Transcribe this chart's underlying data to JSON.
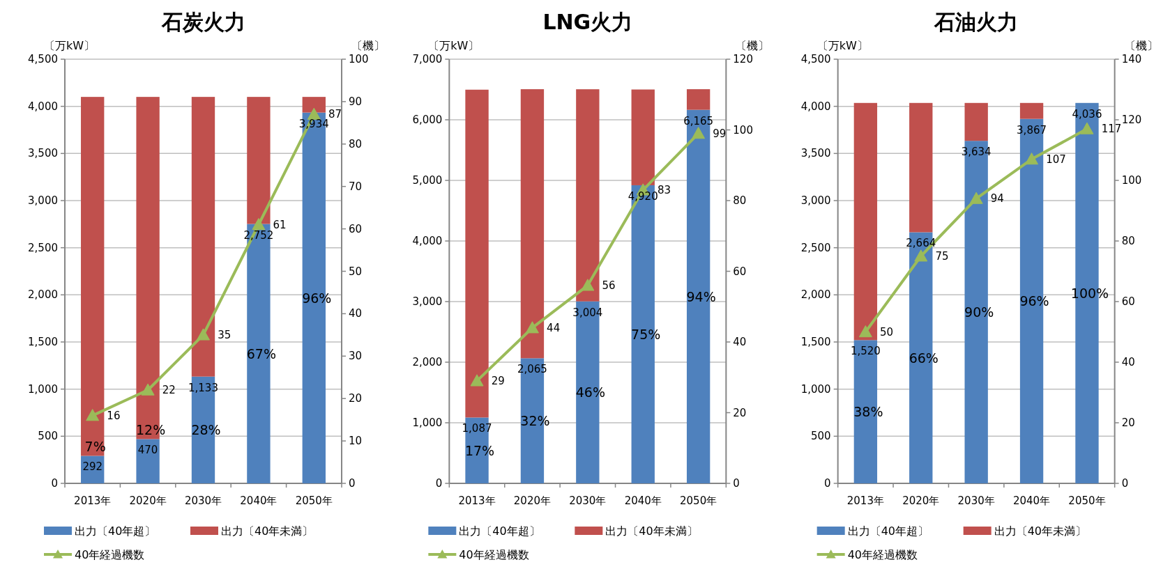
{
  "chart_data": [
    {
      "type": "bar",
      "stacked": true,
      "title": "石炭火力",
      "ylabel": "〔万kW〕",
      "y2label": "〔機〕",
      "categories": [
        "2013年",
        "2020年",
        "2030年",
        "2040年",
        "2050年"
      ],
      "ylim": [
        0,
        4500
      ],
      "yticks": [
        {
          "value": 0,
          "label": "0"
        },
        {
          "value": 500,
          "label": "500"
        },
        {
          "value": 1000,
          "label": "1,000"
        },
        {
          "value": 1500,
          "label": "1,500"
        },
        {
          "value": 2000,
          "label": "2,000"
        },
        {
          "value": 2500,
          "label": "2,500"
        },
        {
          "value": 3000,
          "label": "3,000"
        },
        {
          "value": 3500,
          "label": "3,500"
        },
        {
          "value": 4000,
          "label": "4,000"
        },
        {
          "value": 4500,
          "label": "4,500"
        }
      ],
      "y2lim": [
        0,
        100
      ],
      "y2ticks": [
        0,
        10,
        20,
        30,
        40,
        50,
        60,
        70,
        80,
        90,
        100
      ],
      "grid": "y",
      "legend": "bottom",
      "series": [
        {
          "name": "出力〔40年超〕",
          "color": "#4f81bd",
          "values": [
            292,
            470,
            1133,
            2752,
            3934
          ],
          "value_labels": [
            "292",
            "470",
            "1,133",
            "2,752",
            "3,934"
          ]
        },
        {
          "name": "出力〔40年未満〕",
          "color": "#c0504d",
          "values": [
            3808,
            3630,
            2967,
            1348,
            166
          ]
        },
        {
          "name": "40年経過機数",
          "type": "line",
          "axis": "y2",
          "marker": "triangle",
          "color": "#9bbb59",
          "values": [
            16,
            22,
            35,
            61,
            87
          ],
          "value_labels": [
            "16",
            "22",
            "35",
            "61",
            "87"
          ]
        }
      ],
      "annotations": [
        "7%",
        "12%",
        "28%",
        "67%",
        "96%"
      ]
    },
    {
      "type": "bar",
      "stacked": true,
      "title": "LNG火力",
      "ylabel": "〔万kW〕",
      "y2label": "〔機〕",
      "categories": [
        "2013年",
        "2020年",
        "2030年",
        "2040年",
        "2050年"
      ],
      "ylim": [
        0,
        7000
      ],
      "yticks": [
        {
          "value": 0,
          "label": "0"
        },
        {
          "value": 1000,
          "label": "1,000"
        },
        {
          "value": 2000,
          "label": "2,000"
        },
        {
          "value": 3000,
          "label": "3,000"
        },
        {
          "value": 4000,
          "label": "4,000"
        },
        {
          "value": 5000,
          "label": "5,000"
        },
        {
          "value": 6000,
          "label": "6,000"
        },
        {
          "value": 7000,
          "label": "7,000"
        }
      ],
      "y2lim": [
        0,
        120
      ],
      "y2ticks": [
        0,
        20,
        40,
        60,
        80,
        100,
        120
      ],
      "grid": "y",
      "legend": "bottom",
      "series": [
        {
          "name": "出力〔40年超〕",
          "color": "#4f81bd",
          "values": [
            1087,
            2065,
            3004,
            4920,
            6165
          ],
          "value_labels": [
            "1,087",
            "2,065",
            "3,004",
            "4,920",
            "6,165"
          ]
        },
        {
          "name": "出力〔40年未満〕",
          "color": "#c0504d",
          "values": [
            5410,
            4440,
            3500,
            1580,
            340
          ]
        },
        {
          "name": "40年経過機数",
          "type": "line",
          "axis": "y2",
          "marker": "triangle",
          "color": "#9bbb59",
          "values": [
            29,
            44,
            56,
            83,
            99
          ],
          "value_labels": [
            "29",
            "44",
            "56",
            "83",
            "99"
          ]
        }
      ],
      "annotations": [
        "17%",
        "32%",
        "46%",
        "75%",
        "94%"
      ]
    },
    {
      "type": "bar",
      "stacked": true,
      "title": "石油火力",
      "ylabel": "〔万kW〕",
      "y2label": "〔機〕",
      "categories": [
        "2013年",
        "2020年",
        "2030年",
        "2040年",
        "2050年"
      ],
      "ylim": [
        0,
        4500
      ],
      "yticks": [
        {
          "value": 0,
          "label": "0"
        },
        {
          "value": 500,
          "label": "500"
        },
        {
          "value": 1000,
          "label": "1,000"
        },
        {
          "value": 1500,
          "label": "1,500"
        },
        {
          "value": 2000,
          "label": "2,000"
        },
        {
          "value": 2500,
          "label": "2,500"
        },
        {
          "value": 3000,
          "label": "3,000"
        },
        {
          "value": 3500,
          "label": "3,500"
        },
        {
          "value": 4000,
          "label": "4,000"
        },
        {
          "value": 4500,
          "label": "4,500"
        }
      ],
      "y2lim": [
        0,
        140
      ],
      "y2ticks": [
        0,
        20,
        40,
        60,
        80,
        100,
        120,
        140
      ],
      "grid": "y",
      "legend": "bottom",
      "series": [
        {
          "name": "出力〔40年超〕",
          "color": "#4f81bd",
          "values": [
            1520,
            2664,
            3634,
            3867,
            4036
          ],
          "value_labels": [
            "1,520",
            "2,664",
            "3,634",
            "3,867",
            "4,036"
          ]
        },
        {
          "name": "出力〔40年未満〕",
          "color": "#c0504d",
          "values": [
            2516,
            1372,
            402,
            169,
            0
          ]
        },
        {
          "name": "40年経過機数",
          "type": "line",
          "axis": "y2",
          "marker": "triangle",
          "color": "#9bbb59",
          "values": [
            50,
            75,
            94,
            107,
            117
          ],
          "value_labels": [
            "50",
            "75",
            "94",
            "107",
            "117"
          ]
        }
      ],
      "annotations": [
        "38%",
        "66%",
        "90%",
        "96%",
        "100%"
      ]
    }
  ]
}
